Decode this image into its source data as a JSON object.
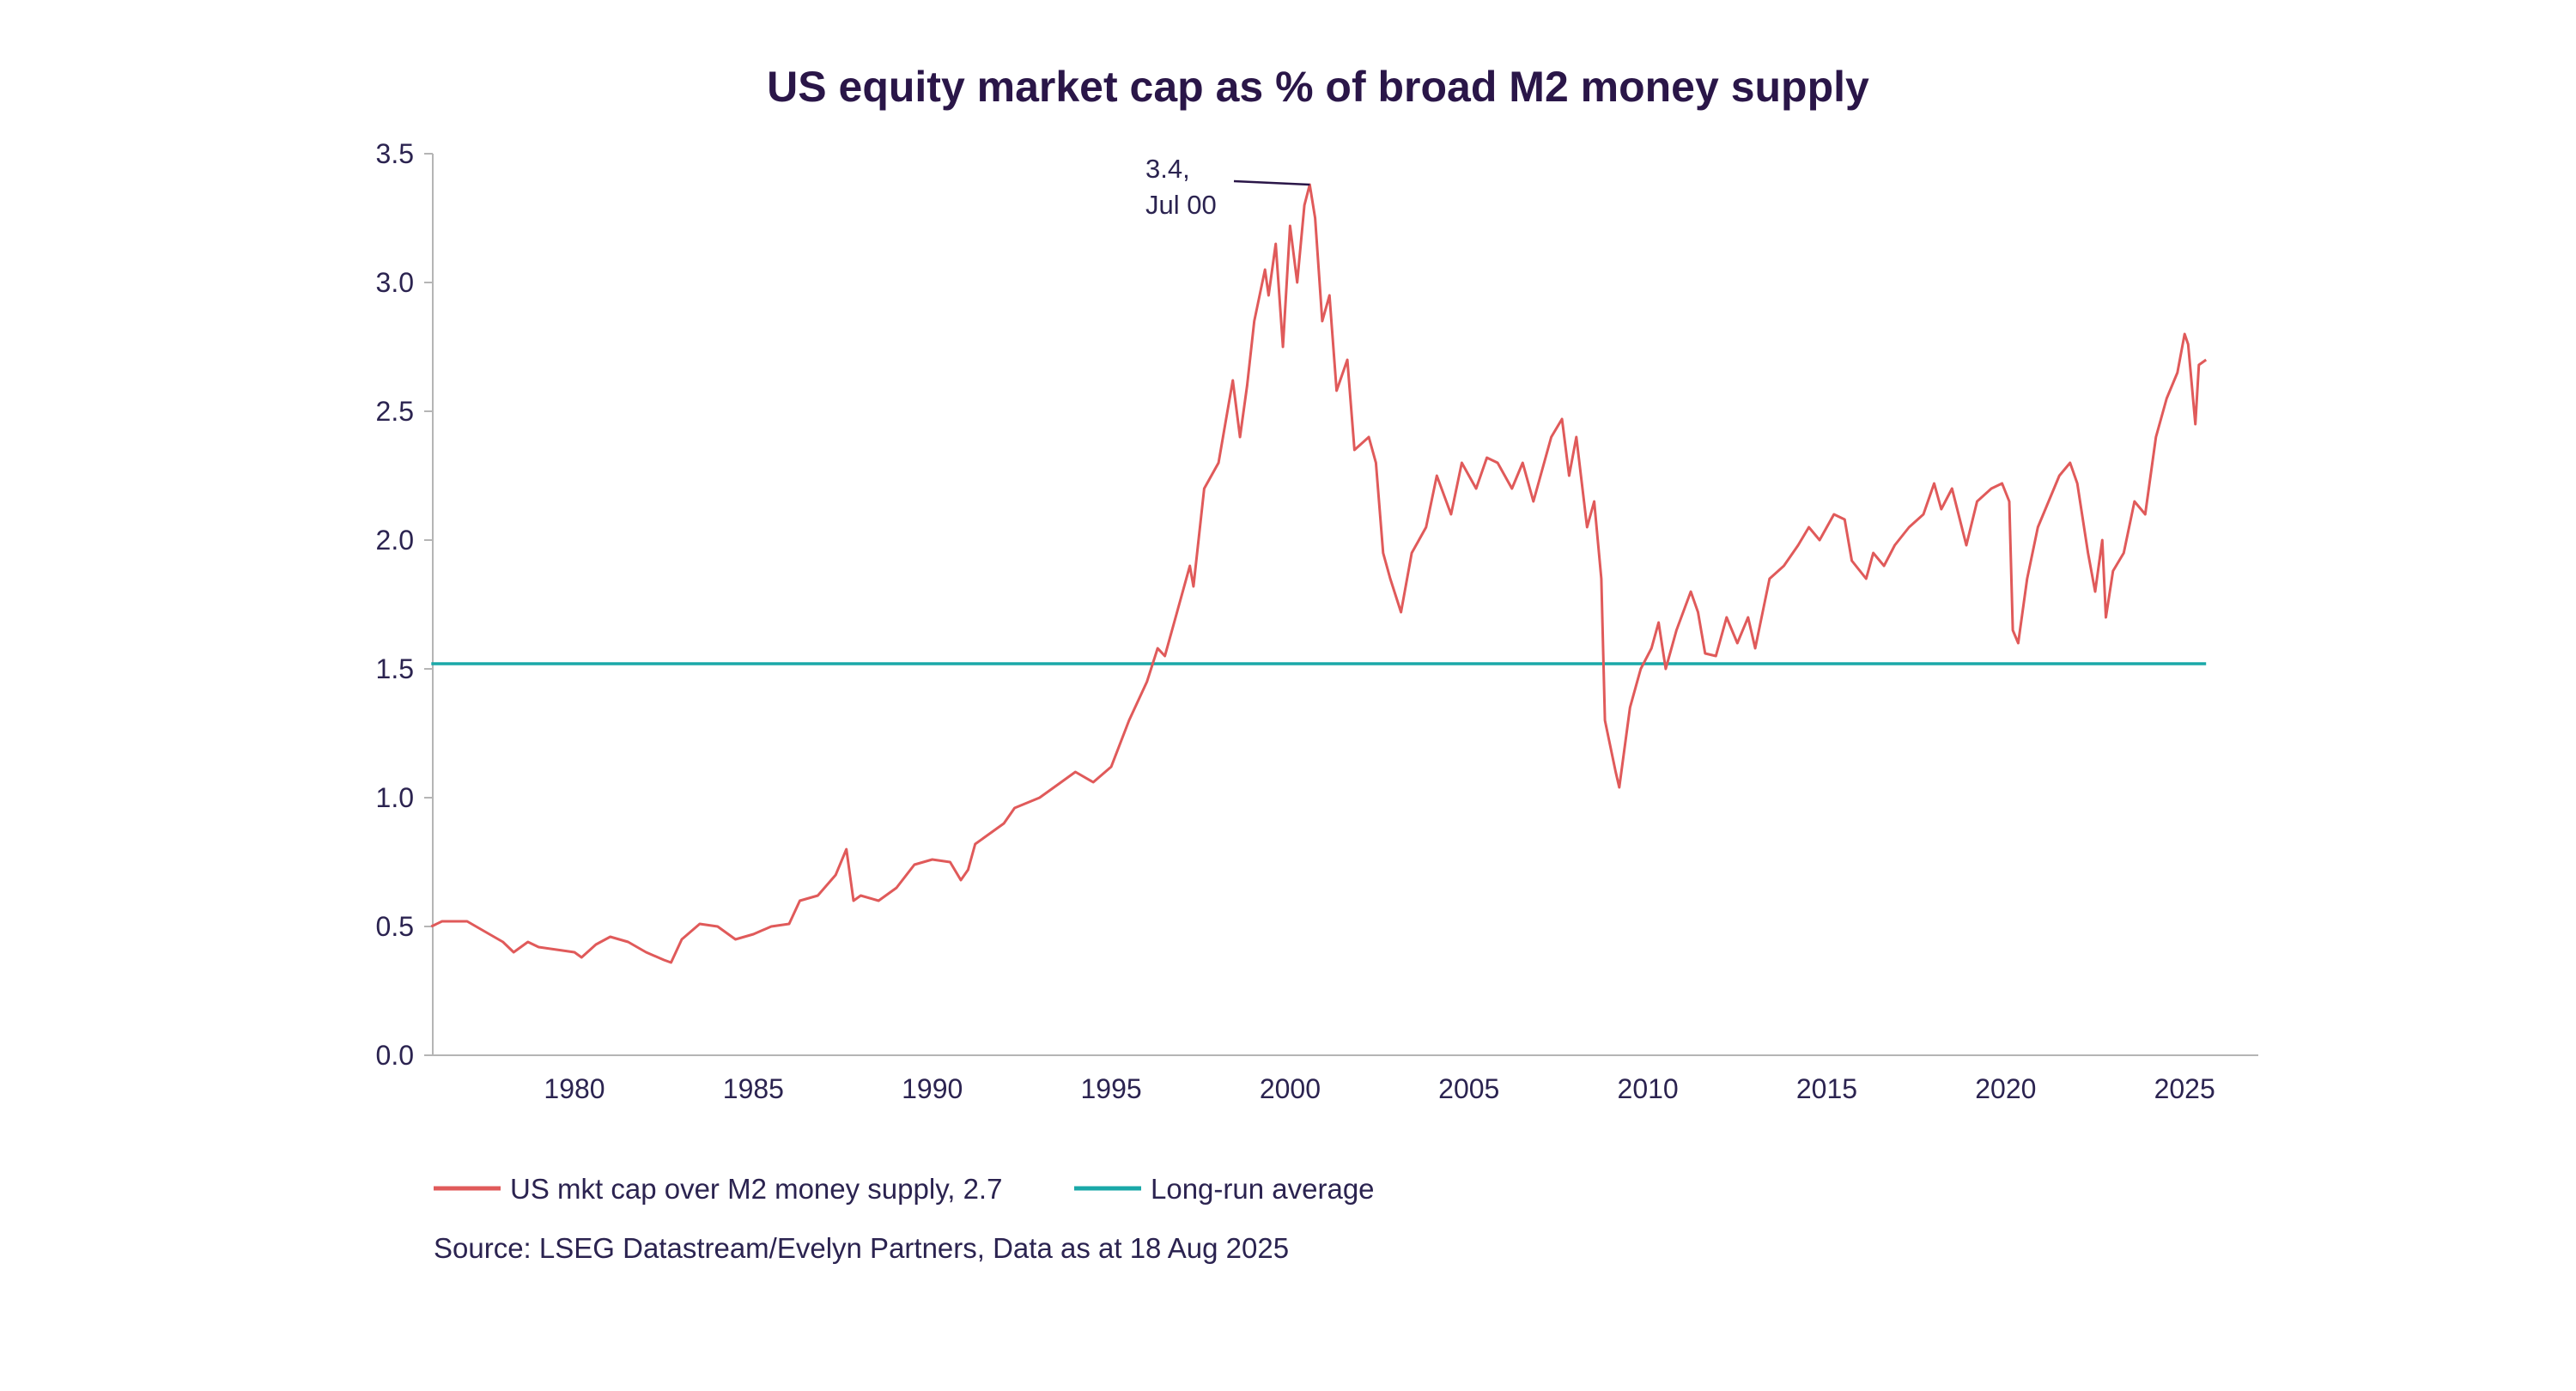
{
  "chart_data": {
    "type": "line",
    "title": "US equity market cap as % of broad M2 money supply",
    "xlabel": "",
    "ylabel": "",
    "xlim": [
      1976.0,
      2026.2
    ],
    "ylim": [
      0.0,
      3.5
    ],
    "y_ticks": [
      "0.0",
      "0.5",
      "1.0",
      "1.5",
      "2.0",
      "2.5",
      "3.0",
      "3.5"
    ],
    "x_ticks": [
      "1980",
      "1985",
      "1990",
      "1995",
      "2000",
      "2005",
      "2010",
      "2015",
      "2020",
      "2025"
    ],
    "grid": false,
    "legend_position": "bottom-left",
    "series": [
      {
        "name": "US mkt cap over M2 money supply, 2.7",
        "color": "#e05a5a",
        "x": [
          1976.0,
          1976.3,
          1977.0,
          1977.5,
          1978.0,
          1978.3,
          1978.7,
          1979.0,
          1979.5,
          1980.0,
          1980.2,
          1980.6,
          1981.0,
          1981.5,
          1982.0,
          1982.5,
          1982.7,
          1983.0,
          1983.5,
          1984.0,
          1984.5,
          1985.0,
          1985.5,
          1986.0,
          1986.3,
          1986.8,
          1987.3,
          1987.6,
          1987.8,
          1988.0,
          1988.5,
          1989.0,
          1989.5,
          1990.0,
          1990.5,
          1990.8,
          1991.0,
          1991.2,
          1991.6,
          1992.0,
          1992.3,
          1993.0,
          1993.5,
          1994.0,
          1994.5,
          1995.0,
          1995.5,
          1996.0,
          1996.3,
          1996.5,
          1996.8,
          1997.2,
          1997.3,
          1997.6,
          1998.0,
          1998.4,
          1998.6,
          1998.8,
          1999.0,
          1999.3,
          1999.4,
          1999.6,
          1999.8,
          2000.0,
          2000.2,
          2000.4,
          2000.55,
          2000.7,
          2000.9,
          2001.1,
          2001.3,
          2001.6,
          2001.8,
          2002.2,
          2002.4,
          2002.6,
          2002.8,
          2003.1,
          2003.4,
          2003.8,
          2004.1,
          2004.5,
          2004.8,
          2005.2,
          2005.5,
          2005.8,
          2006.2,
          2006.5,
          2006.8,
          2007.3,
          2007.6,
          2007.8,
          2008.0,
          2008.3,
          2008.5,
          2008.7,
          2008.8,
          2009.1,
          2009.2,
          2009.5,
          2009.8,
          2010.1,
          2010.3,
          2010.5,
          2010.8,
          2011.2,
          2011.4,
          2011.6,
          2011.9,
          2012.2,
          2012.5,
          2012.8,
          2013.0,
          2013.4,
          2013.8,
          2014.2,
          2014.5,
          2014.8,
          2015.2,
          2015.5,
          2015.7,
          2016.1,
          2016.3,
          2016.6,
          2016.9,
          2017.3,
          2017.7,
          2018.0,
          2018.2,
          2018.5,
          2018.9,
          2019.2,
          2019.6,
          2019.9,
          2020.1,
          2020.2,
          2020.35,
          2020.6,
          2020.9,
          2021.2,
          2021.5,
          2021.8,
          2022.0,
          2022.3,
          2022.5,
          2022.7,
          2022.8,
          2023.0,
          2023.3,
          2023.6,
          2023.9,
          2024.2,
          2024.5,
          2024.8,
          2025.0,
          2025.1,
          2025.3,
          2025.4,
          2025.6
        ],
        "values": [
          0.5,
          0.52,
          0.52,
          0.48,
          0.44,
          0.4,
          0.44,
          0.42,
          0.41,
          0.4,
          0.38,
          0.43,
          0.46,
          0.44,
          0.4,
          0.37,
          0.36,
          0.45,
          0.51,
          0.5,
          0.45,
          0.47,
          0.5,
          0.51,
          0.6,
          0.62,
          0.7,
          0.8,
          0.6,
          0.62,
          0.6,
          0.65,
          0.74,
          0.76,
          0.75,
          0.68,
          0.72,
          0.82,
          0.86,
          0.9,
          0.96,
          1.0,
          1.05,
          1.1,
          1.06,
          1.12,
          1.3,
          1.45,
          1.58,
          1.55,
          1.7,
          1.9,
          1.82,
          2.2,
          2.3,
          2.62,
          2.4,
          2.6,
          2.85,
          3.05,
          2.95,
          3.15,
          2.75,
          3.22,
          3.0,
          3.3,
          3.38,
          3.25,
          2.85,
          2.95,
          2.58,
          2.7,
          2.35,
          2.4,
          2.3,
          1.95,
          1.85,
          1.72,
          1.95,
          2.05,
          2.25,
          2.1,
          2.3,
          2.2,
          2.32,
          2.3,
          2.2,
          2.3,
          2.15,
          2.4,
          2.47,
          2.25,
          2.4,
          2.05,
          2.15,
          1.85,
          1.3,
          1.1,
          1.04,
          1.35,
          1.5,
          1.58,
          1.68,
          1.5,
          1.65,
          1.8,
          1.72,
          1.56,
          1.55,
          1.7,
          1.6,
          1.7,
          1.58,
          1.85,
          1.9,
          1.98,
          2.05,
          2.0,
          2.1,
          2.08,
          1.92,
          1.85,
          1.95,
          1.9,
          1.98,
          2.05,
          2.1,
          2.22,
          2.12,
          2.2,
          1.98,
          2.15,
          2.2,
          2.22,
          2.15,
          1.65,
          1.6,
          1.85,
          2.05,
          2.15,
          2.25,
          2.3,
          2.22,
          1.95,
          1.8,
          2.0,
          1.7,
          1.88,
          1.95,
          2.15,
          2.1,
          2.4,
          2.55,
          2.65,
          2.8,
          2.76,
          2.45,
          2.68,
          2.7
        ]
      },
      {
        "name": "Long-run average",
        "color": "#1aa8a8",
        "x": [
          1976.0,
          2025.6
        ],
        "values": [
          1.52,
          1.52
        ]
      }
    ],
    "annotations": [
      {
        "line1": "3.4,",
        "line2": "Jul 00",
        "x": 2000.55,
        "y": 3.38
      }
    ],
    "source": "Source: LSEG Datastream/Evelyn Partners, Data as at 18 Aug 2025"
  },
  "colors": {
    "text": "#2b2350",
    "axis": "#b0b0b0"
  }
}
